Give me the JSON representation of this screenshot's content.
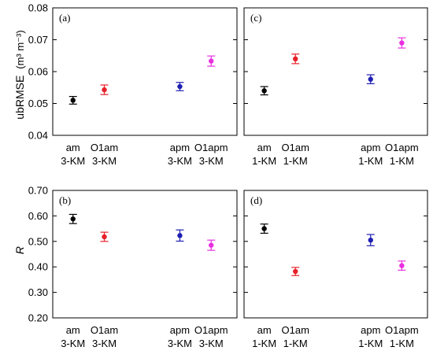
{
  "chart_data": [
    {
      "type": "scatter",
      "panel_label": "(a)",
      "ylabel_main": "ubRMSE",
      "ylabel_unit": "(m³ m⁻³)",
      "ylim": [
        0.04,
        0.08
      ],
      "yticks": [
        "0.04",
        "0.05",
        "0.06",
        "0.07",
        "0.08"
      ],
      "categories": [
        {
          "top": "am",
          "bottom": "3-KM"
        },
        {
          "top": "O1am",
          "bottom": "3-KM"
        },
        {
          "top": "apm",
          "bottom": "3-KM"
        },
        {
          "top": "O1apm",
          "bottom": "3-KM"
        }
      ],
      "values": [
        0.051,
        0.0543,
        0.0553,
        0.0633
      ],
      "errors": [
        0.0012,
        0.0015,
        0.0013,
        0.0016
      ],
      "colors": [
        "#000000",
        "#e8202a",
        "#1f1fb4",
        "#e830e0"
      ]
    },
    {
      "type": "scatter",
      "panel_label": "(c)",
      "ylim": [
        0.04,
        0.08
      ],
      "yticks": [
        "0.04",
        "0.05",
        "0.06",
        "0.07",
        "0.08"
      ],
      "categories": [
        {
          "top": "am",
          "bottom": "1-KM"
        },
        {
          "top": "O1am",
          "bottom": "1-KM"
        },
        {
          "top": "apm",
          "bottom": "1-KM"
        },
        {
          "top": "O1apm",
          "bottom": "1-KM"
        }
      ],
      "values": [
        0.054,
        0.064,
        0.0576,
        0.069
      ],
      "errors": [
        0.0013,
        0.0015,
        0.0014,
        0.0016
      ],
      "colors": [
        "#000000",
        "#e8202a",
        "#1f1fb4",
        "#e830e0"
      ]
    },
    {
      "type": "scatter",
      "panel_label": "(b)",
      "ylabel_main": "R",
      "ylim": [
        0.2,
        0.7
      ],
      "yticks": [
        "0.20",
        "0.30",
        "0.40",
        "0.50",
        "0.60",
        "0.70"
      ],
      "categories": [
        {
          "top": "am",
          "bottom": "3-KM"
        },
        {
          "top": "O1am",
          "bottom": "3-KM"
        },
        {
          "top": "apm",
          "bottom": "3-KM"
        },
        {
          "top": "O1apm",
          "bottom": "3-KM"
        }
      ],
      "values": [
        0.588,
        0.518,
        0.523,
        0.485
      ],
      "errors": [
        0.018,
        0.018,
        0.022,
        0.02
      ],
      "colors": [
        "#000000",
        "#e8202a",
        "#1f1fb4",
        "#e830e0"
      ]
    },
    {
      "type": "scatter",
      "panel_label": "(d)",
      "ylim": [
        0.2,
        0.7
      ],
      "yticks": [
        "0.20",
        "0.30",
        "0.40",
        "0.50",
        "0.60",
        "0.70"
      ],
      "categories": [
        {
          "top": "am",
          "bottom": "1-KM"
        },
        {
          "top": "O1am",
          "bottom": "1-KM"
        },
        {
          "top": "apm",
          "bottom": "1-KM"
        },
        {
          "top": "O1apm",
          "bottom": "1-KM"
        }
      ],
      "values": [
        0.55,
        0.382,
        0.505,
        0.405
      ],
      "errors": [
        0.018,
        0.016,
        0.022,
        0.018
      ],
      "colors": [
        "#000000",
        "#e8202a",
        "#1f1fb4",
        "#e830e0"
      ]
    }
  ]
}
